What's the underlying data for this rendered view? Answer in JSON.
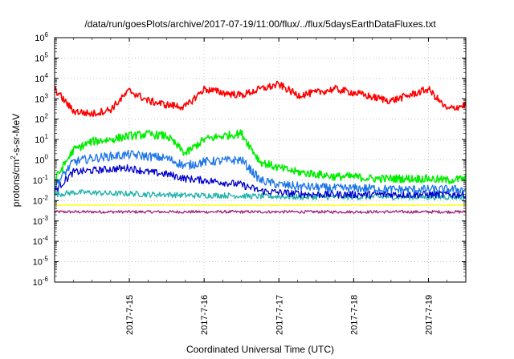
{
  "chart_data": {
    "type": "line",
    "title": "/data/run/goesPlots/archive/2017-07-19/11:00/flux/../flux/5daysEarthDataFluxes.txt",
    "xlabel": "Coordinated Universal Time (UTC)",
    "ylabel": "protons/cm²-s-sr-MeV",
    "yscale": "log",
    "ylim": [
      1e-06,
      1000000.0
    ],
    "y_ticks": [
      "10-6",
      "10-5",
      "10-4",
      "10-3",
      "10-2",
      "10-1",
      "100",
      "101",
      "102",
      "103",
      "104",
      "105",
      "106"
    ],
    "xlim": [
      "2017-07-14 00:00",
      "2017-07-19 12:00"
    ],
    "x_ticks": [
      "2017-7-15",
      "2017-7-16",
      "2017-7-17",
      "2017-7-18",
      "2017-7-19"
    ],
    "grid": true,
    "legend": "none",
    "series": [
      {
        "color": "#ff0000",
        "x": [
          "07-14 00:00",
          "07-14 06:00",
          "07-14 12:00",
          "07-14 18:00",
          "07-15 00:00",
          "07-15 06:00",
          "07-15 12:00",
          "07-15 18:00",
          "07-16 00:00",
          "07-16 06:00",
          "07-16 12:00",
          "07-16 18:00",
          "07-17 00:00",
          "07-17 06:00",
          "07-17 12:00",
          "07-17 18:00",
          "07-18 00:00",
          "07-18 06:00",
          "07-18 12:00",
          "07-18 18:00",
          "07-19 00:00",
          "07-19 06:00",
          "07-19 12:00"
        ],
        "values": [
          3000,
          250,
          180,
          300,
          2500,
          800,
          500,
          400,
          3000,
          2000,
          1500,
          3000,
          5000,
          1500,
          2000,
          3000,
          2000,
          1200,
          800,
          1500,
          3000,
          300,
          500
        ]
      },
      {
        "color": "#00ee00",
        "x": [
          "07-14 00:00",
          "07-14 06:00",
          "07-14 12:00",
          "07-14 18:00",
          "07-15 00:00",
          "07-15 06:00",
          "07-15 12:00",
          "07-15 18:00",
          "07-16 00:00",
          "07-16 06:00",
          "07-16 12:00",
          "07-16 18:00",
          "07-17 00:00",
          "07-17 06:00",
          "07-17 12:00",
          "07-17 18:00",
          "07-18 00:00",
          "07-18 06:00",
          "07-18 12:00",
          "07-18 18:00",
          "07-19 00:00",
          "07-19 06:00",
          "07-19 12:00"
        ],
        "values": [
          0.1,
          3,
          8,
          10,
          15,
          18,
          15,
          2,
          10,
          15,
          20,
          0.8,
          0.4,
          0.25,
          0.2,
          0.15,
          0.15,
          0.12,
          0.12,
          0.12,
          0.12,
          0.1,
          0.12
        ]
      },
      {
        "color": "#1a74e8",
        "x": [
          "07-14 00:00",
          "07-14 06:00",
          "07-14 12:00",
          "07-14 18:00",
          "07-15 00:00",
          "07-15 06:00",
          "07-15 12:00",
          "07-15 18:00",
          "07-16 00:00",
          "07-16 06:00",
          "07-16 12:00",
          "07-16 18:00",
          "07-17 00:00",
          "07-17 06:00",
          "07-17 12:00",
          "07-17 18:00",
          "07-18 00:00",
          "07-18 06:00",
          "07-18 12:00",
          "07-18 18:00",
          "07-19 00:00",
          "07-19 06:00",
          "07-19 12:00"
        ],
        "values": [
          0.05,
          0.8,
          1.2,
          1.5,
          1.8,
          1.5,
          1.2,
          0.5,
          0.8,
          0.9,
          1,
          0.1,
          0.06,
          0.05,
          0.045,
          0.04,
          0.04,
          0.04,
          0.035,
          0.035,
          0.035,
          0.035,
          0.035
        ]
      },
      {
        "color": "#0000cc",
        "x": [
          "07-14 00:00",
          "07-14 06:00",
          "07-14 12:00",
          "07-14 18:00",
          "07-15 00:00",
          "07-15 06:00",
          "07-15 12:00",
          "07-15 18:00",
          "07-16 00:00",
          "07-16 06:00",
          "07-16 12:00",
          "07-16 18:00",
          "07-17 00:00",
          "07-17 06:00",
          "07-17 12:00",
          "07-17 18:00",
          "07-18 00:00",
          "07-18 06:00",
          "07-18 12:00",
          "07-18 18:00",
          "07-19 00:00",
          "07-19 06:00",
          "07-19 12:00"
        ],
        "values": [
          0.03,
          0.25,
          0.3,
          0.35,
          0.4,
          0.25,
          0.2,
          0.12,
          0.1,
          0.08,
          0.06,
          0.03,
          0.025,
          0.022,
          0.02,
          0.02,
          0.02,
          0.02,
          0.02,
          0.02,
          0.02,
          0.02,
          0.02
        ]
      },
      {
        "color": "#20b2aa",
        "x": [
          "07-14 00:00",
          "07-14 06:00",
          "07-14 12:00",
          "07-14 18:00",
          "07-15 00:00",
          "07-15 06:00",
          "07-15 12:00",
          "07-15 18:00",
          "07-16 00:00",
          "07-16 06:00",
          "07-16 12:00",
          "07-16 18:00",
          "07-17 00:00",
          "07-17 06:00",
          "07-17 12:00",
          "07-17 18:00",
          "07-18 00:00",
          "07-18 06:00",
          "07-18 12:00",
          "07-18 18:00",
          "07-19 00:00",
          "07-19 06:00",
          "07-19 12:00"
        ],
        "values": [
          0.02,
          0.025,
          0.025,
          0.022,
          0.022,
          0.02,
          0.02,
          0.018,
          0.018,
          0.018,
          0.017,
          0.016,
          0.016,
          0.015,
          0.015,
          0.015,
          0.015,
          0.015,
          0.015,
          0.015,
          0.015,
          0.015,
          0.015
        ]
      },
      {
        "color": "#ffff00",
        "x": [
          "07-14 00:00",
          "07-14 12:00",
          "07-15 00:00",
          "07-15 12:00",
          "07-16 00:00",
          "07-16 12:00",
          "07-17 00:00",
          "07-17 12:00",
          "07-18 00:00",
          "07-18 12:00",
          "07-19 00:00",
          "07-19 12:00"
        ],
        "values": [
          0.006,
          0.006,
          0.006,
          0.006,
          0.006,
          0.006,
          0.006,
          0.006,
          0.006,
          0.006,
          0.006,
          0.006
        ]
      },
      {
        "color": "#a0207a",
        "x": [
          "07-14 00:00",
          "07-14 12:00",
          "07-15 00:00",
          "07-15 12:00",
          "07-16 00:00",
          "07-16 12:00",
          "07-17 00:00",
          "07-17 12:00",
          "07-18 00:00",
          "07-18 12:00",
          "07-19 00:00",
          "07-19 12:00"
        ],
        "values": [
          0.0028,
          0.0028,
          0.0028,
          0.0028,
          0.0028,
          0.0028,
          0.0028,
          0.0028,
          0.0028,
          0.0028,
          0.0028,
          0.0028
        ]
      }
    ]
  }
}
